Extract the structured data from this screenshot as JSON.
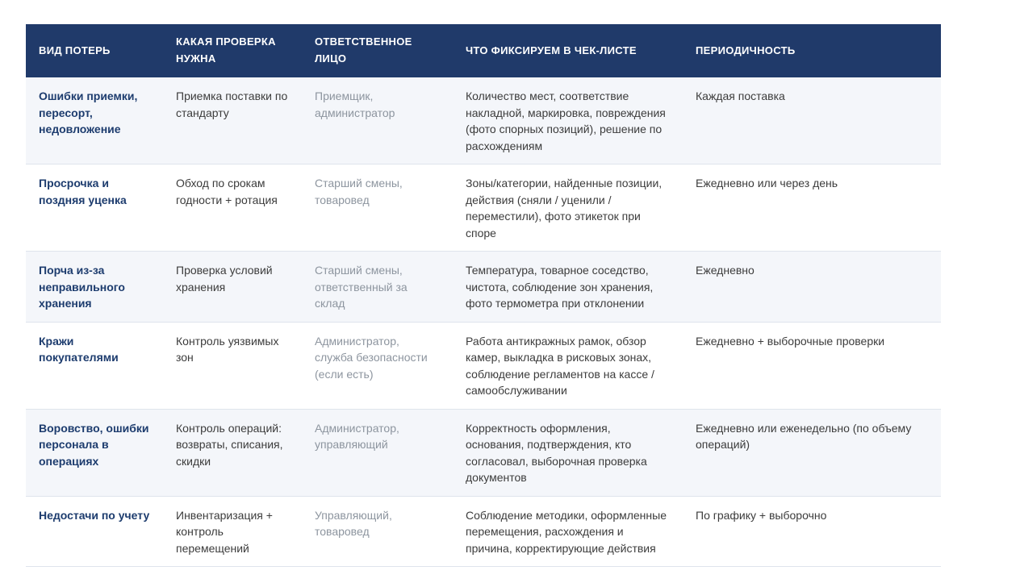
{
  "colors": {
    "header_bg": "#203a6a",
    "header_text": "#ffffff",
    "row_alt_bg": "#f4f6fa",
    "row_bg": "#ffffff",
    "divider": "#dfe4ec",
    "loss_type_text": "#1d3c6e",
    "body_text": "#3c3c3c",
    "person_text": "#8d959f"
  },
  "table": {
    "columns": [
      {
        "label": "ВИД ПОТЕРЬ"
      },
      {
        "label": "КАКАЯ ПРОВЕРКА НУЖНА"
      },
      {
        "label": "ОТВЕТСТВЕННОЕ ЛИЦО"
      },
      {
        "label": "ЧТО ФИКСИРУЕМ В ЧЕК-ЛИСТЕ"
      },
      {
        "label": "ПЕРИОДИЧНОСТЬ"
      }
    ],
    "rows": [
      {
        "loss_type": "Ошибки приемки, пересорт, недовложение",
        "check": "Приемка поставки по стандарту",
        "person": "Приемщик, администратор",
        "checklist": "Количество мест, соответствие накладной, маркировка, повреждения (фото спорных позиций), решение по расхождениям",
        "period": "Каждая поставка"
      },
      {
        "loss_type": "Просрочка и поздняя уценка",
        "check": "Обход по срокам годности + ротация",
        "person": "Старший смены, товаровед",
        "checklist": "Зоны/категории, найденные позиции, действия (сняли / уценили / переместили), фото этикеток при споре",
        "period": "Ежедневно или через день"
      },
      {
        "loss_type": "Порча из-за неправильного хранения",
        "check": "Проверка условий хранения",
        "person": "Старший смены, ответственный за склад",
        "checklist": "Температура, товарное соседство, чистота, соблюдение зон хранения, фото термометра при отклонении",
        "period": "Ежедневно"
      },
      {
        "loss_type": "Кражи покупателями",
        "check": "Контроль уязвимых зон",
        "person": "Администратор, служба безопасности (если есть)",
        "checklist": "Работа антикражных рамок, обзор камер, выкладка в рисковых зонах, соблюдение регламентов на кассе / самообслуживании",
        "period": "Ежедневно + выборочные проверки"
      },
      {
        "loss_type": "Воровство, ошибки персонала в операциях",
        "check": "Контроль операций: возвраты, списания, скидки",
        "person": "Администратор, управляющий",
        "checklist": "Корректность оформления, основания, подтверждения, кто согласовал, выборочная проверка документов",
        "period": "Ежедневно или еженедельно (по объему операций)"
      },
      {
        "loss_type": "Недостачи по учету",
        "check": "Инвентаризация + контроль перемещений",
        "person": "Управляющий, товаровед",
        "checklist": "Соблюдение методики, оформленные перемещения, расхождения и причина, корректирующие действия",
        "period": "По графику + выборочно"
      }
    ]
  }
}
